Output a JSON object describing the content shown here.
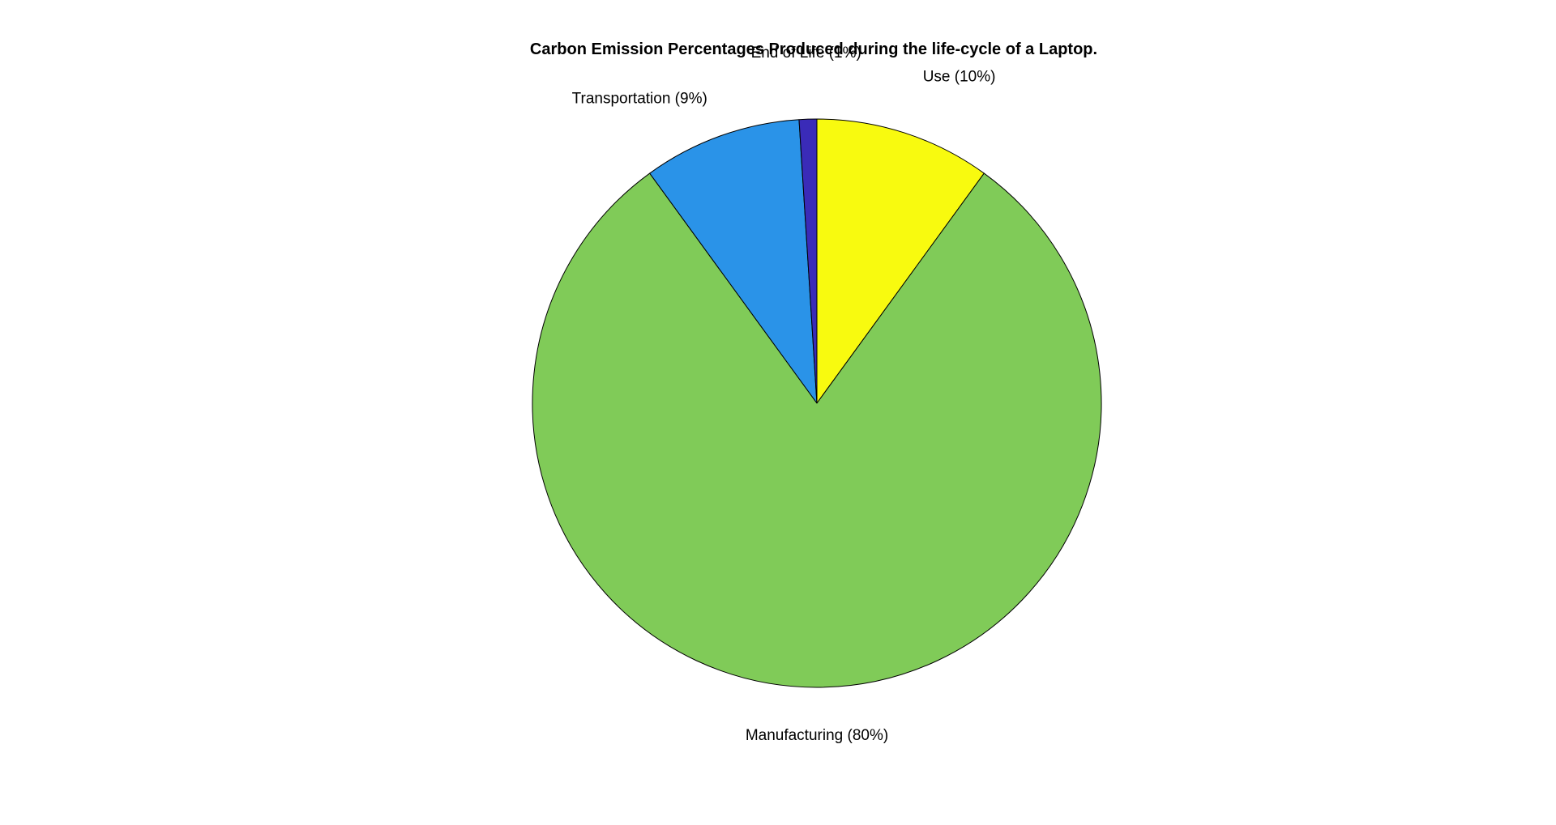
{
  "chart_data": {
    "type": "pie",
    "title": "Carbon Emission Percentages Produced during the life-cycle of a Laptop.",
    "slices": [
      {
        "label": "Use (10%)",
        "value": 10,
        "color": "#f8fa0f"
      },
      {
        "label": "Manufacturing (80%)",
        "value": 80,
        "color": "#80cb58"
      },
      {
        "label": "Transportation (9%)",
        "value": 9,
        "color": "#2a93e8"
      },
      {
        "label": "End of Life (1%)",
        "value": 1,
        "color": "#3a2bb8"
      }
    ],
    "direction": "clockwise",
    "start": "top"
  }
}
